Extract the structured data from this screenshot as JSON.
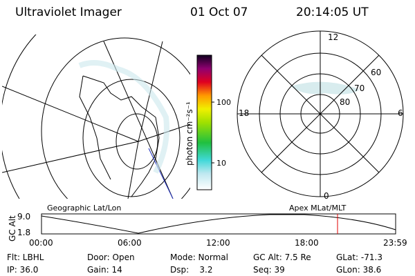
{
  "header": {
    "instrument": "Ultraviolet Imager",
    "date": "01 Oct 07",
    "time": "20:14:05 UT"
  },
  "colorbar": {
    "unit": "photon cm⁻²s⁻¹",
    "labels": [
      "100",
      "10"
    ]
  },
  "polar": {
    "mlt_labels": [
      "12",
      "18",
      "6",
      "0"
    ],
    "lat_labels": [
      "60",
      "70",
      "80"
    ]
  },
  "map_titles": {
    "left": "Geographic Lat/Lon",
    "right": "Apex MLat/MLT"
  },
  "altitude_plot": {
    "axis_label": "GC Alt",
    "y_labels": [
      "9.0",
      "1.8"
    ],
    "x_labels": [
      "00:00",
      "06:00",
      "12:00",
      "18:00",
      "23:59"
    ]
  },
  "footer": {
    "rows": [
      [
        "Flt: LBHL",
        "Door: Open",
        "Mode: Normal",
        "GC Alt: 7.5 Re",
        "GLat: -71.3"
      ],
      [
        "IP: 36.0",
        "Gain: 14",
        "Dsp:    3.2",
        "Seq: 39",
        "GLon: 38.6"
      ]
    ]
  }
}
